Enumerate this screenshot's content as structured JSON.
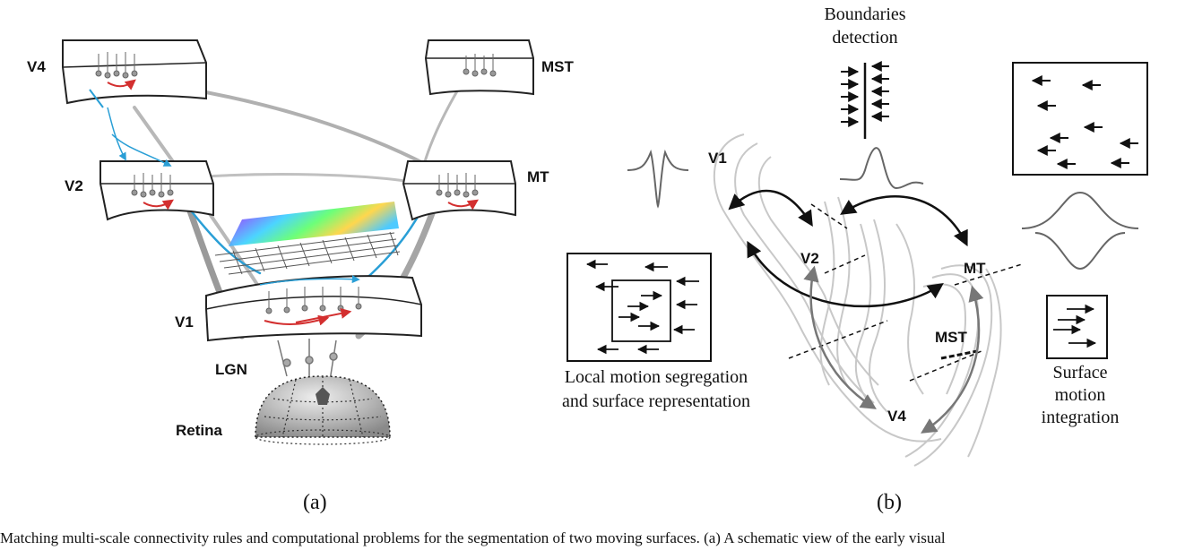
{
  "panel_a": {
    "areas": {
      "v4": "V4",
      "mst": "MST",
      "v2": "V2",
      "mt": "MT",
      "v1": "V1",
      "lgn": "LGN",
      "retina": "Retina"
    },
    "label": "(a)"
  },
  "panel_b": {
    "areas": {
      "v1": "V1",
      "v2": "V2",
      "mt": "MT",
      "mst": "MST",
      "v4": "V4"
    },
    "boundaries_line1": "Boundaries",
    "boundaries_line2": "detection",
    "local_line1": "Local motion segregation",
    "local_line2": "and surface representation",
    "surface_line1": "Surface",
    "surface_line2": "motion",
    "surface_line3": "integration",
    "label": "(b)"
  },
  "caption": "Matching multi-scale connectivity rules and computational problems for the segmentation of two moving surfaces. (a) A schematic view of the early visual",
  "colors": {
    "feedback": "#2a9fd6",
    "lateral": "#d32f2f",
    "connection": "#a9a9a9",
    "cortex": "#c8c8c8"
  }
}
